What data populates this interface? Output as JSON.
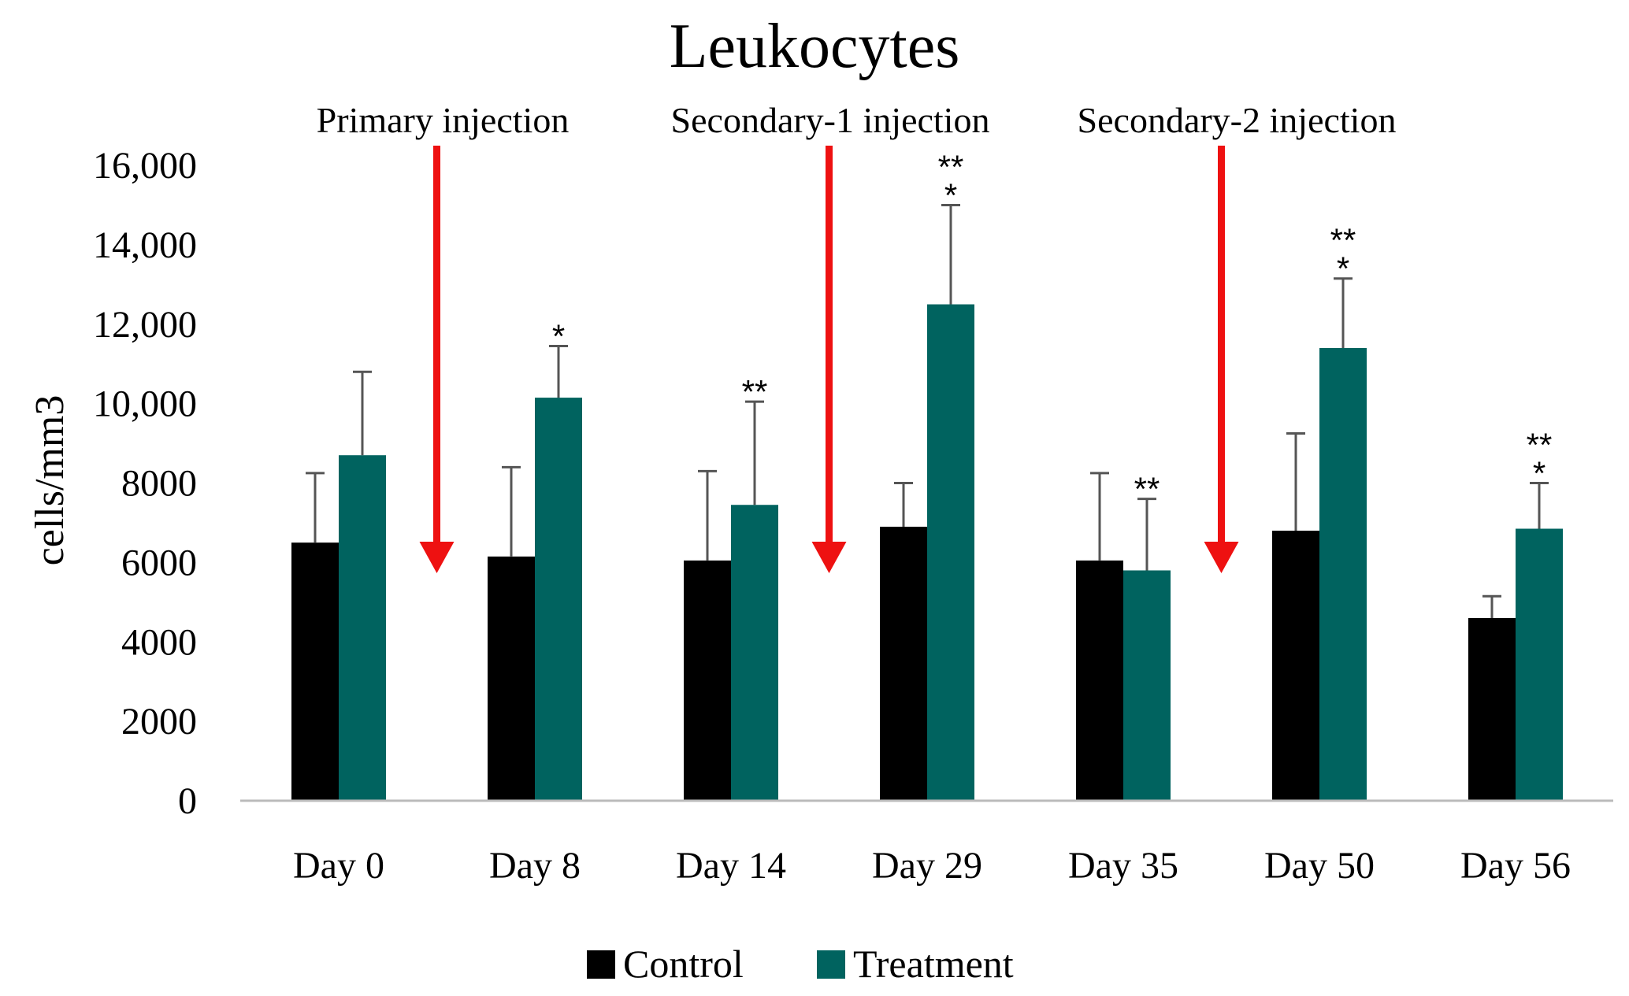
{
  "chart_data": {
    "type": "bar",
    "title": "Leukocytes",
    "xlabel": "",
    "ylabel": "cells/mm3",
    "ylim": [
      0,
      16000
    ],
    "yticks": [
      0,
      2000,
      4000,
      6000,
      8000,
      10000,
      12000,
      14000,
      16000
    ],
    "ytick_labels": [
      "0",
      "2000",
      "4000",
      "6000",
      "8000",
      "10,000",
      "12,000",
      "14,000",
      "16,000"
    ],
    "categories": [
      "Day 0",
      "Day 8",
      "Day 14",
      "Day 29",
      "Day 35",
      "Day 50",
      "Day 56"
    ],
    "series": [
      {
        "name": "Control",
        "color": "#000000",
        "values": [
          6500,
          6150,
          6050,
          6900,
          6050,
          6800,
          4600
        ],
        "errors": [
          1750,
          2250,
          2250,
          1100,
          2200,
          2450,
          550
        ]
      },
      {
        "name": "Treatment",
        "color": "#00635f",
        "values": [
          8700,
          10150,
          7450,
          12500,
          5800,
          11400,
          6850
        ],
        "errors": [
          2100,
          1300,
          2600,
          2500,
          1800,
          1750,
          1150
        ]
      }
    ],
    "significance": [
      {
        "category_index": 1,
        "lines": [
          "*"
        ]
      },
      {
        "category_index": 2,
        "lines": [
          "**"
        ]
      },
      {
        "category_index": 3,
        "lines": [
          "**",
          "*"
        ]
      },
      {
        "category_index": 4,
        "lines": [
          "**"
        ]
      },
      {
        "category_index": 5,
        "lines": [
          "**",
          "*"
        ]
      },
      {
        "category_index": 6,
        "lines": [
          "**",
          "*"
        ]
      }
    ],
    "injections": [
      {
        "label": "Primary injection",
        "between": [
          0,
          1
        ]
      },
      {
        "label": "Secondary-1 injection",
        "between": [
          2,
          3
        ]
      },
      {
        "label": "Secondary-2 injection",
        "between": [
          4,
          5
        ]
      }
    ],
    "arrow_color": "#ee1111",
    "legend_position": "bottom-center",
    "grid": false
  }
}
